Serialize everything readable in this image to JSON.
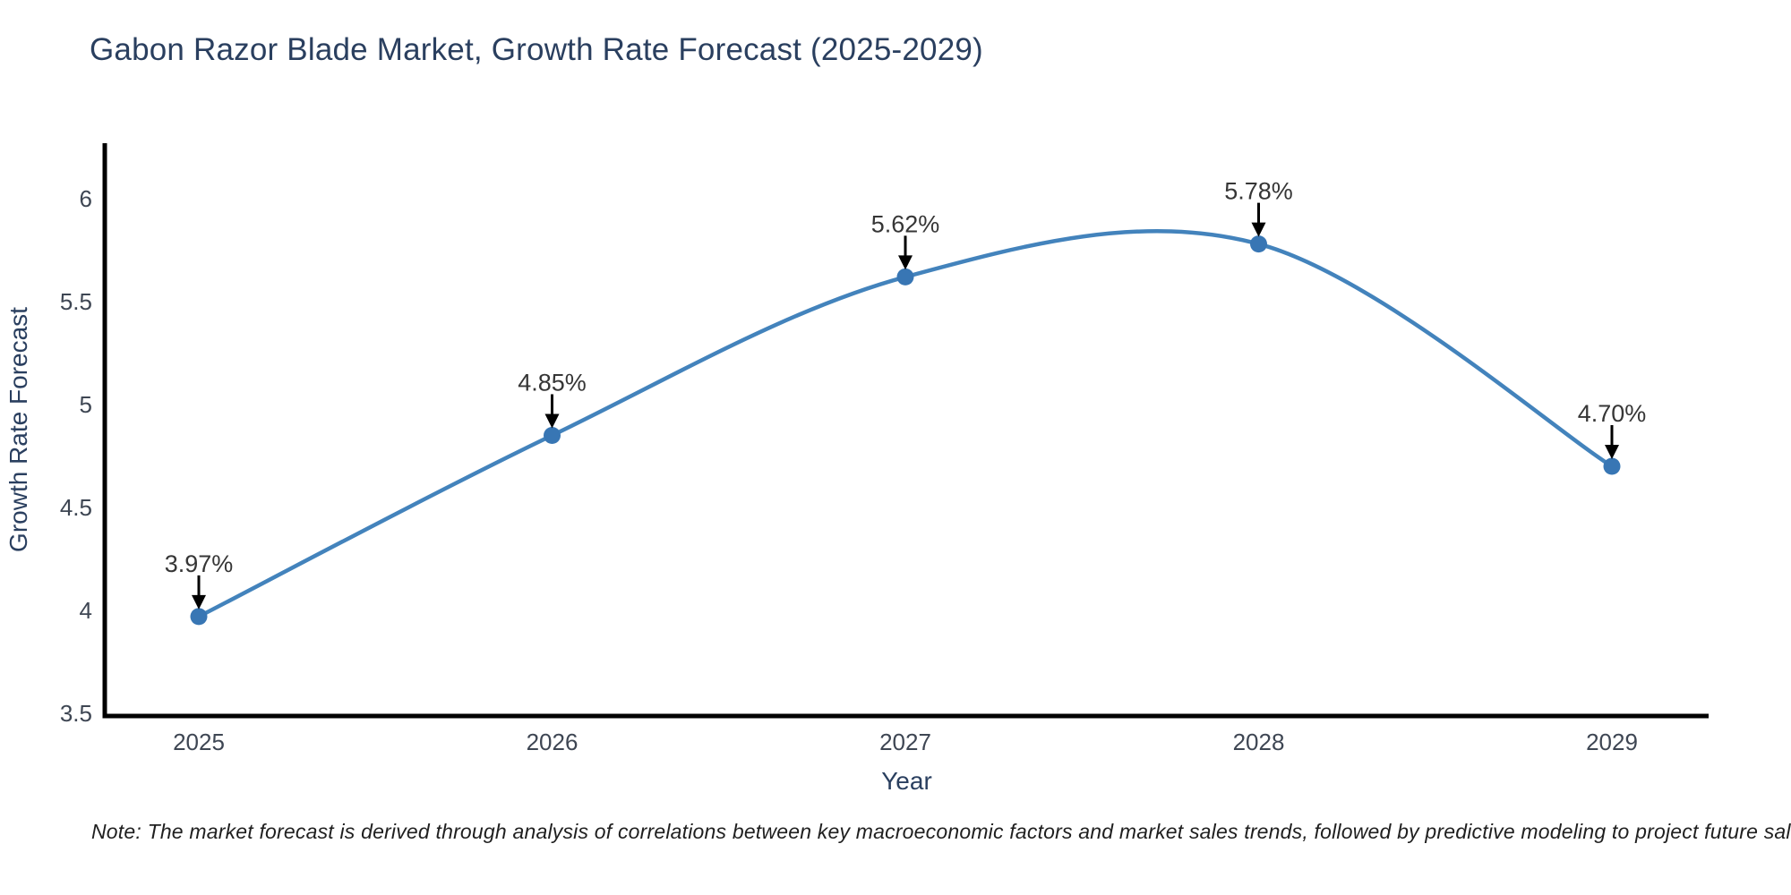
{
  "title": "Gabon Razor Blade Market, Growth Rate Forecast (2025-2029)",
  "note": "Note: The market forecast is derived through analysis of correlations between key macroeconomic factors and market sales trends, followed by predictive modeling to project future sales",
  "chart_data": {
    "type": "line",
    "title": "Gabon Razor Blade Market, Growth Rate Forecast (2025-2029)",
    "x": [
      2025,
      2026,
      2027,
      2028,
      2029
    ],
    "series": [
      {
        "name": "Growth Rate Forecast",
        "values": [
          3.97,
          4.85,
          5.62,
          5.78,
          4.7
        ]
      }
    ],
    "point_labels": [
      "3.97%",
      "4.85%",
      "5.62%",
      "5.78%",
      "4.70%"
    ],
    "xlabel": "Year",
    "ylabel": "Growth Rate Forecast",
    "xticks": [
      "2025",
      "2026",
      "2027",
      "2028",
      "2029"
    ],
    "yticks": [
      "3.5",
      "4",
      "4.5",
      "5",
      "5.5",
      "6"
    ],
    "ylim": [
      3.5,
      6.27
    ],
    "line_shape": "spline",
    "grid": false,
    "legend": false,
    "markers": true,
    "annotations_have_arrows": true,
    "colors": {
      "line": "#4383bc",
      "marker": "#3876b4",
      "axis": "#000000",
      "title": "#2a3f5f",
      "axis_title": "#2a3f5f",
      "tick": "#3e4653",
      "annotation": "#363636",
      "arrow": "#000000",
      "note": "#1f1f1f",
      "background": "#ffffff"
    }
  }
}
